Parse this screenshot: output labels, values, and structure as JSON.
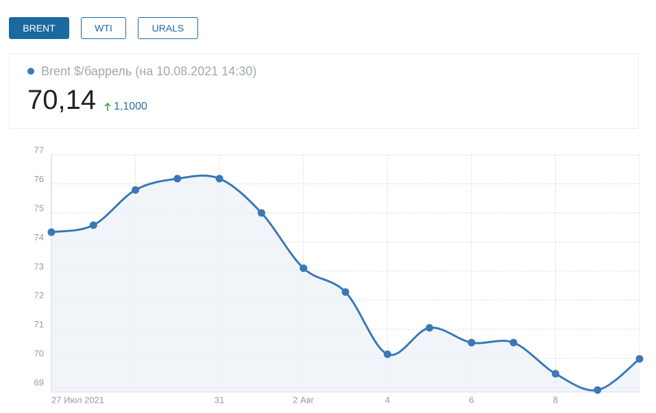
{
  "tabs": [
    "BRENT",
    "WTI",
    "URALS"
  ],
  "header": {
    "title": "Brent $/баррель (на 10.08.2021 14:30)",
    "price": "70,14",
    "change": "1,1000"
  },
  "chart_data": {
    "type": "line",
    "categories": [
      "27 Июл 2021",
      null,
      null,
      null,
      "31",
      null,
      "2 Авг",
      null,
      "4",
      null,
      "6",
      null,
      "8",
      null,
      null
    ],
    "series": [
      {
        "name": "Brent",
        "color": "#3a78b7",
        "values": [
          74.34,
          74.58,
          75.79,
          76.18,
          76.18,
          75.0,
          73.1,
          72.28,
          70.14,
          71.05,
          70.54,
          70.54,
          69.47,
          68.91,
          69.98
        ]
      }
    ],
    "ylim": [
      68.85,
      77
    ],
    "yticks": [
      69,
      70,
      71,
      72,
      73,
      74,
      75,
      76,
      77
    ],
    "grid": true
  }
}
